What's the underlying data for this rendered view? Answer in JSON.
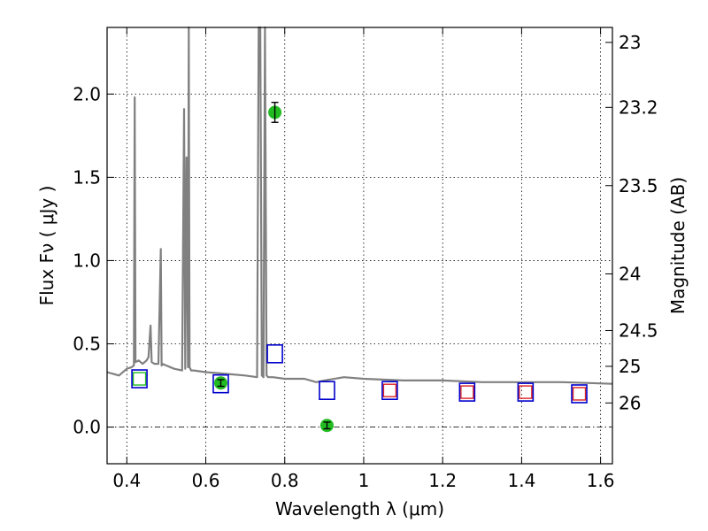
{
  "chart_data": {
    "type": "scatter",
    "xlabel": "Wavelength  λ (μm)",
    "ylabel": "Flux  Fν ( μJy )",
    "y2label": "Magnitude (AB)",
    "xlim": [
      0.35,
      1.63
    ],
    "ylim": [
      -0.22,
      2.4
    ],
    "grid": true,
    "grid_style": "dotted",
    "x_ticks": [
      0.4,
      0.6,
      0.8,
      1.0,
      1.2,
      1.4,
      1.6
    ],
    "x_tick_labels": [
      "0.4",
      "0.6",
      "0.8",
      "1",
      "1.2",
      "1.4",
      "1.6"
    ],
    "y_ticks": [
      0.0,
      0.5,
      1.0,
      1.5,
      2.0
    ],
    "y_tick_labels": [
      "0.0",
      "0.5",
      "1.0",
      "1.5",
      "2.0"
    ],
    "y2_ticks": [
      {
        "flux": 2.31,
        "label": "23"
      },
      {
        "flux": 1.92,
        "label": "23.2"
      },
      {
        "flux": 1.45,
        "label": "23.5"
      },
      {
        "flux": 0.92,
        "label": "24"
      },
      {
        "flux": 0.58,
        "label": "24.5"
      },
      {
        "flux": 0.365,
        "label": "25"
      },
      {
        "flux": 0.145,
        "label": "26"
      }
    ],
    "colors": {
      "model": "#808080",
      "observed": "#22bb22",
      "model_phot": "#0000cc",
      "model_phot_inner": "#dd2222",
      "zero_line": "#000000"
    },
    "series": [
      {
        "kind": "line",
        "x": [
          0.35,
          0.38,
          0.4,
          0.412,
          0.418,
          0.42,
          0.422,
          0.43,
          0.44,
          0.45,
          0.455,
          0.46,
          0.463,
          0.47,
          0.48,
          0.486,
          0.488,
          0.49,
          0.5,
          0.52,
          0.54,
          0.545,
          0.548,
          0.551,
          0.555,
          0.557,
          0.559,
          0.561,
          0.563,
          0.57,
          0.6,
          0.65,
          0.7,
          0.73,
          0.734,
          0.738,
          0.742,
          0.746,
          0.75,
          0.754,
          0.758,
          0.762,
          0.77,
          0.8,
          0.85,
          0.88,
          0.9,
          0.95,
          1.0,
          1.1,
          1.2,
          1.3,
          1.4,
          1.5,
          1.63
        ],
        "y": [
          0.33,
          0.31,
          0.35,
          0.36,
          0.37,
          1.98,
          0.39,
          0.4,
          0.38,
          0.4,
          0.42,
          0.61,
          0.39,
          0.38,
          0.38,
          1.07,
          0.37,
          0.38,
          0.37,
          0.35,
          0.34,
          1.91,
          0.35,
          1.62,
          0.36,
          2.5,
          0.36,
          0.35,
          0.34,
          0.34,
          0.33,
          0.32,
          0.31,
          0.3,
          2.5,
          2.5,
          0.31,
          0.3,
          2.5,
          0.31,
          0.3,
          0.3,
          0.3,
          0.29,
          0.29,
          0.27,
          0.28,
          0.3,
          0.29,
          0.28,
          0.28,
          0.27,
          0.27,
          0.27,
          0.26
        ]
      },
      {
        "kind": "model_photometry",
        "x": [
          0.432,
          0.638,
          0.775,
          0.907,
          1.066,
          1.262,
          1.41,
          1.546
        ],
        "y": [
          0.29,
          0.26,
          0.44,
          0.22,
          0.22,
          0.21,
          0.21,
          0.2
        ],
        "inner_x": [
          0.432,
          1.066,
          1.262,
          1.41,
          1.546
        ],
        "inner_y": [
          0.29,
          0.22,
          0.21,
          0.21,
          0.2
        ],
        "inner_colors": [
          "#22bb22",
          "#dd2222",
          "#dd2222",
          "#dd2222",
          "#dd2222"
        ]
      },
      {
        "kind": "observed",
        "x": [
          0.638,
          0.775,
          0.907
        ],
        "y": [
          0.265,
          1.89,
          0.01
        ],
        "yerr": [
          0.02,
          0.06,
          0.02
        ]
      }
    ]
  }
}
